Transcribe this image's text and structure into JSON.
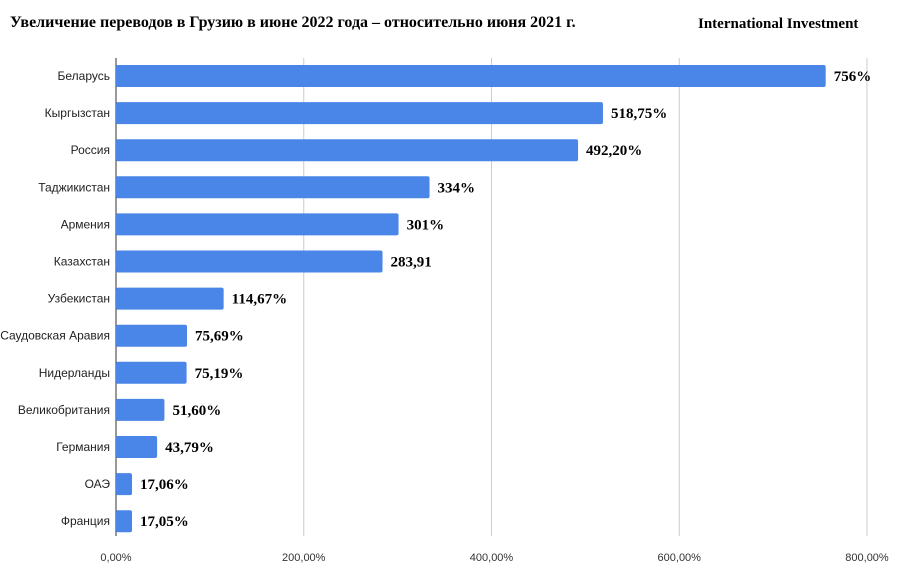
{
  "header": {
    "title": "Увеличение переводов в Грузию в июне 2022 года – относительно июня 2021 г.",
    "brand": "International Investment"
  },
  "colors": {
    "bar": "#4a86e8",
    "grid": "#cccccc",
    "axis": "#333333"
  },
  "chart_data": {
    "type": "bar",
    "orientation": "horizontal",
    "title": "Увеличение переводов в Грузию в июне 2022 года – относительно июня 2021 г.",
    "categories": [
      "Беларусь",
      "Кыргызстан",
      "Россия",
      "Таджикистан",
      "Армения",
      "Казахстан",
      "Узбекистан",
      "Саудовская Аравия",
      "Нидерланды",
      "Великобритания",
      "Германия",
      "ОАЭ",
      "Франция"
    ],
    "values": [
      756,
      518.75,
      492.2,
      334,
      301,
      283.91,
      114.67,
      75.69,
      75.19,
      51.6,
      43.79,
      17.06,
      17.05
    ],
    "data_labels": [
      "756%",
      "518,75%",
      "492,20%",
      "334%",
      "301%",
      "283,91",
      "114,67%",
      "75,69%",
      "75,19%",
      "51,60%",
      "43,79%",
      "17,06%",
      "17,05%"
    ],
    "xlim": [
      0,
      800
    ],
    "xticks": [
      0,
      200,
      400,
      600,
      800
    ],
    "xtick_labels": [
      "0,00%",
      "200,00%",
      "400,00%",
      "600,00%",
      "800,00%"
    ],
    "grid": "vertical",
    "xlabel": "",
    "ylabel": ""
  }
}
